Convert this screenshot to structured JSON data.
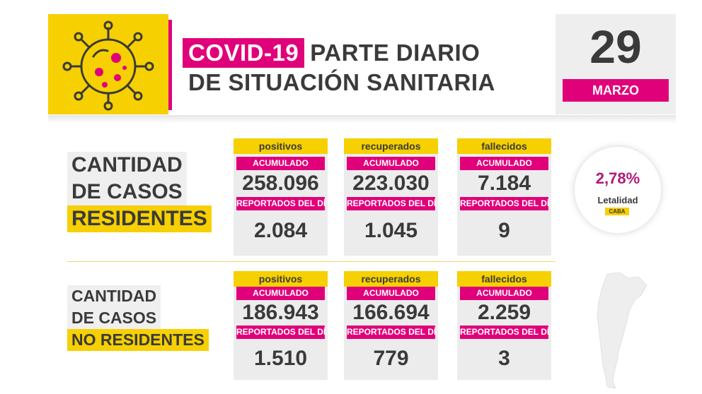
{
  "header": {
    "covid_tag": "COVID-19",
    "title_rest": "PARTE DIARIO",
    "title_line2": "DE SITUACIÓN SANITARIA",
    "day": "29",
    "month": "MARZO"
  },
  "colors": {
    "magenta": "#e0007a",
    "yellow": "#f6d000",
    "gray": "#ececec",
    "text": "#3a3a3a"
  },
  "residentes": {
    "label_line1": "CANTIDAD",
    "label_line2": "DE CASOS",
    "label_line3": "RESIDENTES",
    "cards": [
      {
        "head": "positivos",
        "acum_label": "ACUMULADO",
        "acum": "258.096",
        "day_label": "REPORTADOS DEL DÍA",
        "day": "2.084"
      },
      {
        "head": "recuperados",
        "acum_label": "ACUMULADO",
        "acum": "223.030",
        "day_label": "REPORTADOS DEL DÍA",
        "day": "1.045"
      },
      {
        "head": "fallecidos",
        "acum_label": "ACUMULADO",
        "acum": "7.184",
        "day_label": "REPORTADOS DEL DÍA",
        "day": "9"
      }
    ]
  },
  "no_residentes": {
    "label_line1": "CANTIDAD",
    "label_line2": "DE CASOS",
    "label_line3": "NO RESIDENTES",
    "cards": [
      {
        "head": "positivos",
        "acum_label": "ACUMULADO",
        "acum": "186.943",
        "day_label": "REPORTADOS DEL DÍA",
        "day": "1.510"
      },
      {
        "head": "recuperados",
        "acum_label": "ACUMULADO",
        "acum": "166.694",
        "day_label": "REPORTADOS DEL DÍA",
        "day": "779"
      },
      {
        "head": "fallecidos",
        "acum_label": "ACUMULADO",
        "acum": "2.259",
        "day_label": "REPORTADOS DEL DÍA",
        "day": "3"
      }
    ]
  },
  "letalidad": {
    "pct": "2,78%",
    "label": "Letalidad",
    "tag": "CABA"
  },
  "icons": {
    "virus": "virus-icon",
    "map": "argentina-map-icon"
  }
}
